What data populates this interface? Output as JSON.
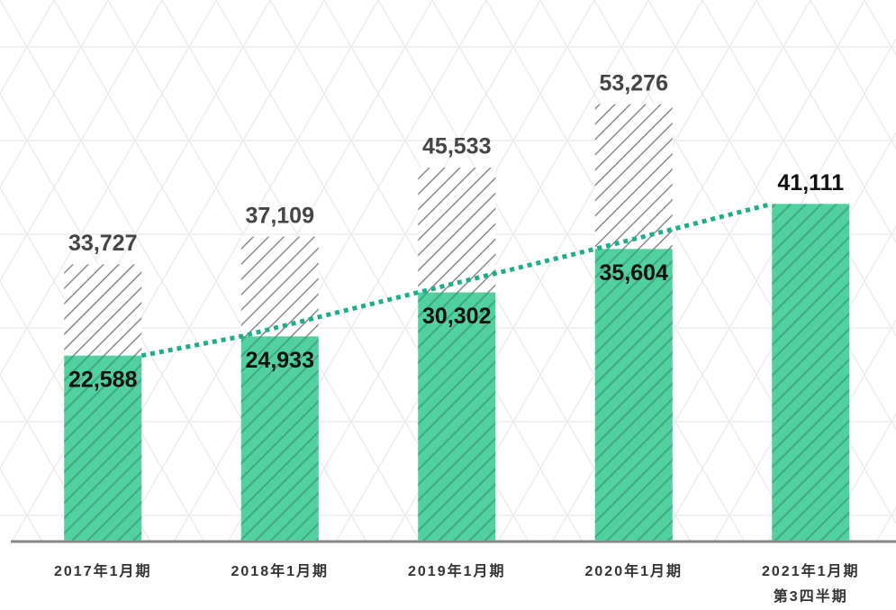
{
  "chart_data": {
    "type": "bar",
    "categories": [
      "2017年1月期",
      "2018年1月期",
      "2019年1月期",
      "2020年1月期",
      "2021年1月期\n第3四半期"
    ],
    "series": [
      {
        "color": "#ffffff",
        "values": [
          33727,
          37109,
          45533,
          53276,
          null
        ],
        "value_labels": [
          "33,727",
          "37,109",
          "45,533",
          "53,276",
          null
        ]
      },
      {
        "color": "#52d1a0",
        "values": [
          22588,
          24933,
          30302,
          35604,
          41111
        ],
        "value_labels": [
          "22,588",
          "24,933",
          "30,302",
          "35,604",
          "41,111"
        ]
      }
    ],
    "line_color": "#1aae8a",
    "ylim": [
      0,
      66000
    ]
  }
}
